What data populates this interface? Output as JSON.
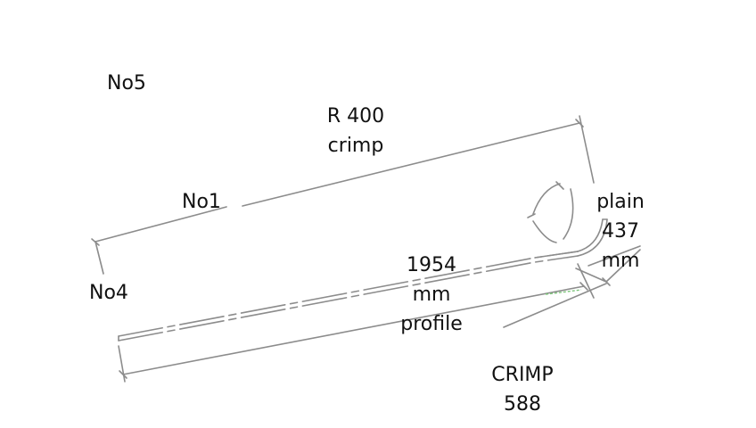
{
  "labels": {
    "no5": "No5",
    "radius": [
      "R 400",
      "crimp"
    ],
    "no1": "No1",
    "plain": [
      "plain",
      "437",
      "mm"
    ],
    "no4": "No4",
    "profile": [
      "1954",
      "mm",
      "profile"
    ],
    "crimp": [
      "CRIMP",
      "588"
    ]
  },
  "colors": {
    "line": "#8c8c8c",
    "text": "#111111",
    "accent": "#7cc47a"
  }
}
